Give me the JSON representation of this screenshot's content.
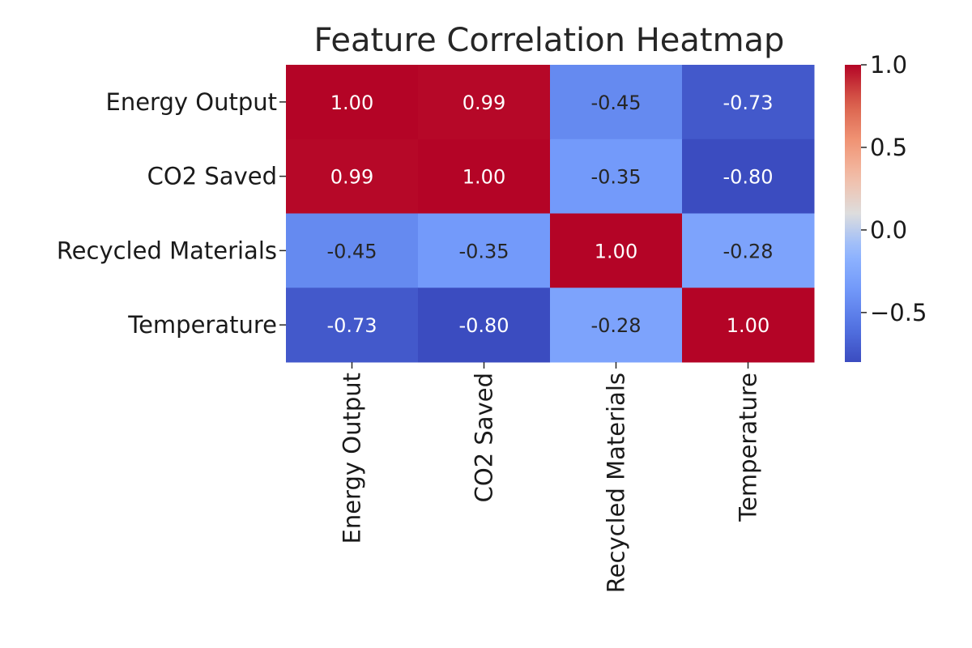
{
  "chart_data": {
    "type": "heatmap",
    "title": "Feature Correlation Heatmap",
    "row_labels": [
      "Energy Output",
      "CO2 Saved",
      "Recycled Materials",
      "Temperature"
    ],
    "column_labels": [
      "Energy Output",
      "CO2 Saved",
      "Recycled Materials",
      "Temperature"
    ],
    "values": [
      [
        1.0,
        0.99,
        -0.45,
        -0.73
      ],
      [
        0.99,
        1.0,
        -0.35,
        -0.8
      ],
      [
        -0.45,
        -0.35,
        1.0,
        -0.28
      ],
      [
        -0.73,
        -0.8,
        -0.28,
        1.0
      ]
    ],
    "value_format": "2 decimals",
    "colormap": "coolwarm",
    "color_range": [
      -0.8,
      1.0
    ],
    "colorbar": {
      "ticks": [
        1.0,
        0.5,
        0.0,
        -0.5
      ],
      "tick_labels": [
        "1.0",
        "0.5",
        "0.0",
        "−0.5"
      ]
    },
    "grid": false
  }
}
